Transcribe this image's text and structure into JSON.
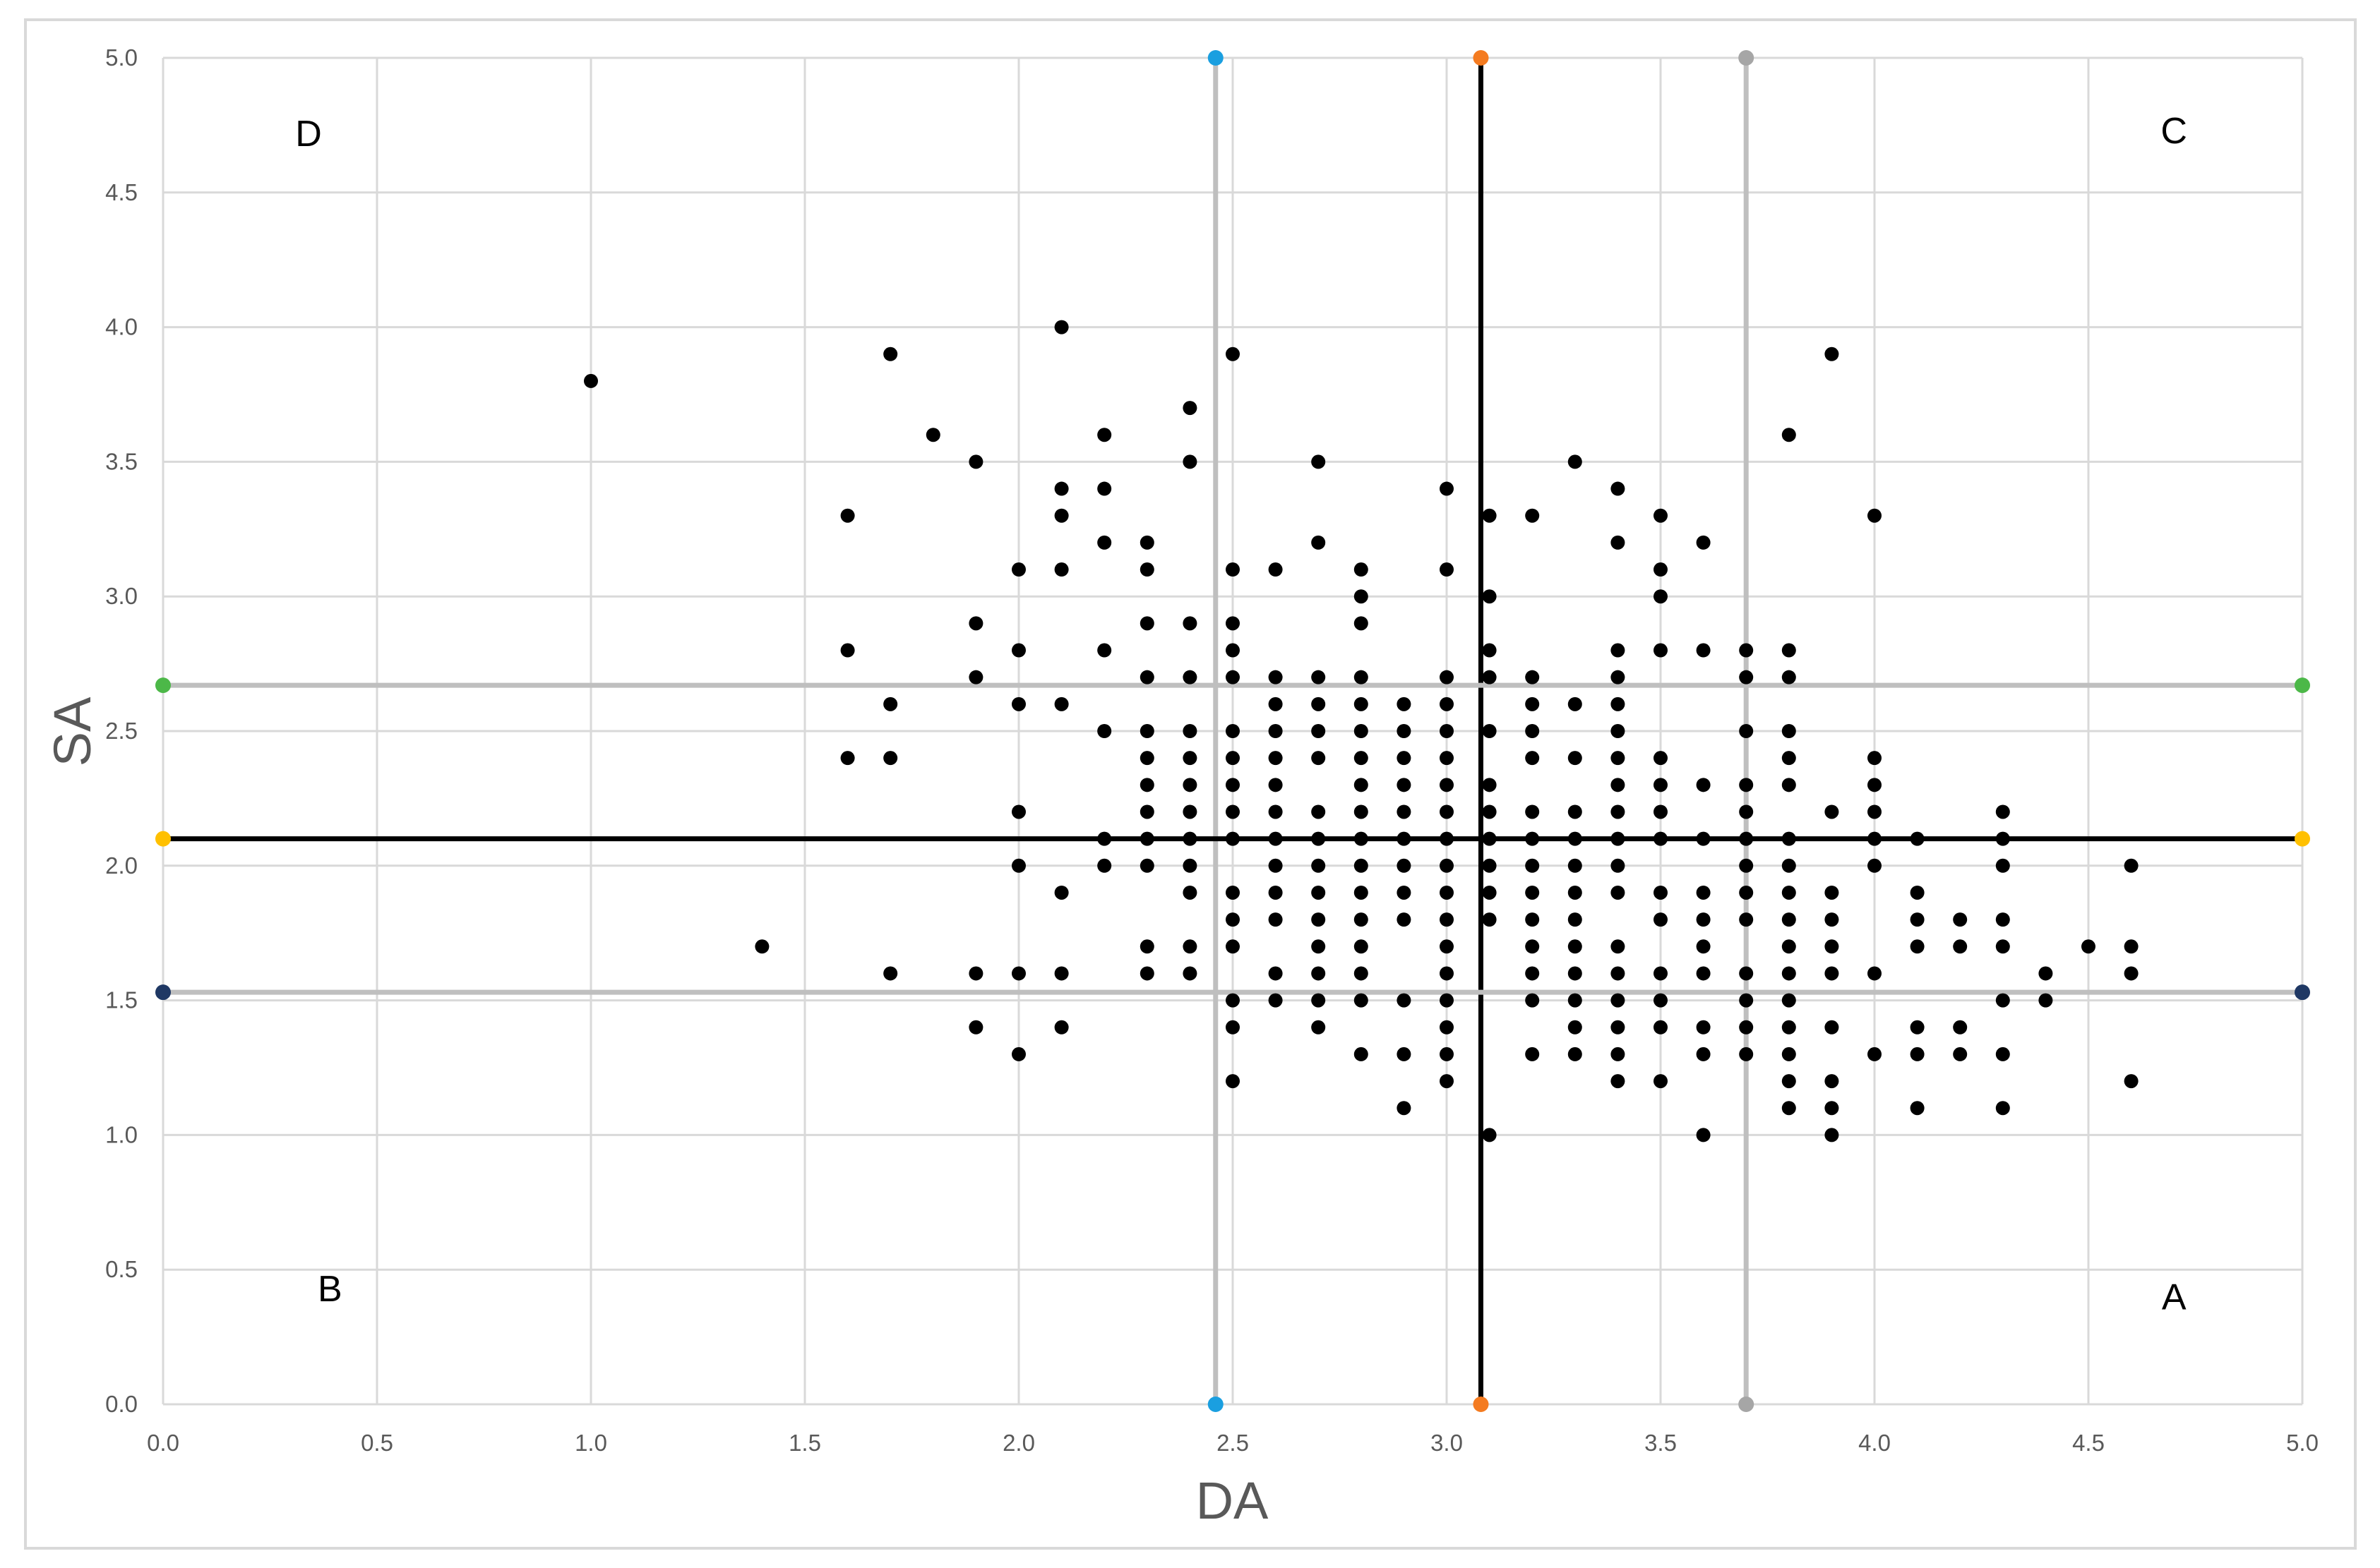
{
  "chart_data": {
    "type": "scatter",
    "title": "",
    "xlabel": "DA",
    "ylabel": "SA",
    "xlim": [
      0,
      5
    ],
    "ylim": [
      0,
      5
    ],
    "x_ticks": [
      "0.0",
      "0.5",
      "1.0",
      "1.5",
      "2.0",
      "2.5",
      "3.0",
      "3.5",
      "4.0",
      "4.5",
      "5.0"
    ],
    "y_ticks": [
      "0.0",
      "0.5",
      "1.0",
      "1.5",
      "2.0",
      "2.5",
      "3.0",
      "3.5",
      "4.0",
      "4.5",
      "5.0"
    ],
    "grid": true,
    "legend": "none",
    "quadrant_labels": [
      {
        "text": "D",
        "x": 0.34,
        "y": 4.72
      },
      {
        "text": "C",
        "x": 4.7,
        "y": 4.73
      },
      {
        "text": "B",
        "x": 0.39,
        "y": 0.43
      },
      {
        "text": "A",
        "x": 4.7,
        "y": 0.4
      }
    ],
    "reference_lines": [
      {
        "orientation": "vertical",
        "value": 2.46,
        "color": "#BFBFBF",
        "marker_color": "#1A9FE0"
      },
      {
        "orientation": "vertical",
        "value": 3.08,
        "color": "#000000",
        "marker_color": "#F47B20"
      },
      {
        "orientation": "vertical",
        "value": 3.7,
        "color": "#BFBFBF",
        "marker_color": "#A6A6A6"
      },
      {
        "orientation": "horizontal",
        "value": 2.67,
        "color": "#BFBFBF",
        "marker_color": "#4CB848"
      },
      {
        "orientation": "horizontal",
        "value": 2.1,
        "color": "#000000",
        "marker_color": "#FFC000"
      },
      {
        "orientation": "horizontal",
        "value": 1.53,
        "color": "#BFBFBF",
        "marker_color": "#1F3864"
      }
    ],
    "series": [
      {
        "color": "#000000",
        "points": [
          [
            1.0,
            3.8
          ],
          [
            1.4,
            1.7
          ],
          [
            1.6,
            3.3
          ],
          [
            1.6,
            2.8
          ],
          [
            1.6,
            2.4
          ],
          [
            1.7,
            3.9
          ],
          [
            1.7,
            2.6
          ],
          [
            1.7,
            2.4
          ],
          [
            1.7,
            1.6
          ],
          [
            1.8,
            3.6
          ],
          [
            1.9,
            3.5
          ],
          [
            1.9,
            2.9
          ],
          [
            1.9,
            2.7
          ],
          [
            1.9,
            1.6
          ],
          [
            1.9,
            1.4
          ],
          [
            2.0,
            3.1
          ],
          [
            2.0,
            2.8
          ],
          [
            2.0,
            2.6
          ],
          [
            2.0,
            2.2
          ],
          [
            2.0,
            2.0
          ],
          [
            2.0,
            1.6
          ],
          [
            2.0,
            1.3
          ],
          [
            2.1,
            4.0
          ],
          [
            2.1,
            3.4
          ],
          [
            2.1,
            3.3
          ],
          [
            2.1,
            3.1
          ],
          [
            2.1,
            2.6
          ],
          [
            2.1,
            1.9
          ],
          [
            2.1,
            1.6
          ],
          [
            2.1,
            1.4
          ],
          [
            2.2,
            3.6
          ],
          [
            2.2,
            3.4
          ],
          [
            2.2,
            3.2
          ],
          [
            2.2,
            2.8
          ],
          [
            2.2,
            2.5
          ],
          [
            2.2,
            2.1
          ],
          [
            2.2,
            2.0
          ],
          [
            2.3,
            3.2
          ],
          [
            2.3,
            3.1
          ],
          [
            2.3,
            2.9
          ],
          [
            2.3,
            2.7
          ],
          [
            2.3,
            2.5
          ],
          [
            2.3,
            2.4
          ],
          [
            2.3,
            2.3
          ],
          [
            2.3,
            2.2
          ],
          [
            2.3,
            2.1
          ],
          [
            2.3,
            2.0
          ],
          [
            2.3,
            1.7
          ],
          [
            2.3,
            1.6
          ],
          [
            2.4,
            3.7
          ],
          [
            2.4,
            3.5
          ],
          [
            2.4,
            2.9
          ],
          [
            2.4,
            2.7
          ],
          [
            2.4,
            2.5
          ],
          [
            2.4,
            2.4
          ],
          [
            2.4,
            2.3
          ],
          [
            2.4,
            2.2
          ],
          [
            2.4,
            2.1
          ],
          [
            2.4,
            2.0
          ],
          [
            2.4,
            1.9
          ],
          [
            2.4,
            1.7
          ],
          [
            2.4,
            1.6
          ],
          [
            2.5,
            3.9
          ],
          [
            2.5,
            3.1
          ],
          [
            2.5,
            2.9
          ],
          [
            2.5,
            2.8
          ],
          [
            2.5,
            2.7
          ],
          [
            2.5,
            2.5
          ],
          [
            2.5,
            2.4
          ],
          [
            2.5,
            2.3
          ],
          [
            2.5,
            2.2
          ],
          [
            2.5,
            2.1
          ],
          [
            2.5,
            1.9
          ],
          [
            2.5,
            1.8
          ],
          [
            2.5,
            1.7
          ],
          [
            2.5,
            1.5
          ],
          [
            2.5,
            1.4
          ],
          [
            2.5,
            1.2
          ],
          [
            2.6,
            3.1
          ],
          [
            2.6,
            2.7
          ],
          [
            2.6,
            2.6
          ],
          [
            2.6,
            2.5
          ],
          [
            2.6,
            2.4
          ],
          [
            2.6,
            2.3
          ],
          [
            2.6,
            2.2
          ],
          [
            2.6,
            2.1
          ],
          [
            2.6,
            2.0
          ],
          [
            2.6,
            1.9
          ],
          [
            2.6,
            1.8
          ],
          [
            2.6,
            1.6
          ],
          [
            2.6,
            1.5
          ],
          [
            2.7,
            3.5
          ],
          [
            2.7,
            3.2
          ],
          [
            2.7,
            2.7
          ],
          [
            2.7,
            2.6
          ],
          [
            2.7,
            2.5
          ],
          [
            2.7,
            2.4
          ],
          [
            2.7,
            2.2
          ],
          [
            2.7,
            2.1
          ],
          [
            2.7,
            2.0
          ],
          [
            2.7,
            1.9
          ],
          [
            2.7,
            1.8
          ],
          [
            2.7,
            1.7
          ],
          [
            2.7,
            1.6
          ],
          [
            2.7,
            1.5
          ],
          [
            2.7,
            1.4
          ],
          [
            2.8,
            3.1
          ],
          [
            2.8,
            3.0
          ],
          [
            2.8,
            2.9
          ],
          [
            2.8,
            2.7
          ],
          [
            2.8,
            2.6
          ],
          [
            2.8,
            2.5
          ],
          [
            2.8,
            2.4
          ],
          [
            2.8,
            2.3
          ],
          [
            2.8,
            2.2
          ],
          [
            2.8,
            2.1
          ],
          [
            2.8,
            2.0
          ],
          [
            2.8,
            1.9
          ],
          [
            2.8,
            1.8
          ],
          [
            2.8,
            1.7
          ],
          [
            2.8,
            1.6
          ],
          [
            2.8,
            1.5
          ],
          [
            2.8,
            1.3
          ],
          [
            2.9,
            2.6
          ],
          [
            2.9,
            2.5
          ],
          [
            2.9,
            2.4
          ],
          [
            2.9,
            2.3
          ],
          [
            2.9,
            2.2
          ],
          [
            2.9,
            2.1
          ],
          [
            2.9,
            2.0
          ],
          [
            2.9,
            1.9
          ],
          [
            2.9,
            1.8
          ],
          [
            2.9,
            1.5
          ],
          [
            2.9,
            1.3
          ],
          [
            2.9,
            1.1
          ],
          [
            3.0,
            3.4
          ],
          [
            3.0,
            3.1
          ],
          [
            3.0,
            2.7
          ],
          [
            3.0,
            2.6
          ],
          [
            3.0,
            2.5
          ],
          [
            3.0,
            2.4
          ],
          [
            3.0,
            2.3
          ],
          [
            3.0,
            2.2
          ],
          [
            3.0,
            2.1
          ],
          [
            3.0,
            2.0
          ],
          [
            3.0,
            1.9
          ],
          [
            3.0,
            1.8
          ],
          [
            3.0,
            1.7
          ],
          [
            3.0,
            1.6
          ],
          [
            3.0,
            1.5
          ],
          [
            3.0,
            1.4
          ],
          [
            3.0,
            1.3
          ],
          [
            3.0,
            1.2
          ],
          [
            3.1,
            3.3
          ],
          [
            3.1,
            3.0
          ],
          [
            3.1,
            2.8
          ],
          [
            3.1,
            2.7
          ],
          [
            3.1,
            2.5
          ],
          [
            3.1,
            2.3
          ],
          [
            3.1,
            2.2
          ],
          [
            3.1,
            2.1
          ],
          [
            3.1,
            2.0
          ],
          [
            3.1,
            1.9
          ],
          [
            3.1,
            1.8
          ],
          [
            3.1,
            1.0
          ],
          [
            3.2,
            3.3
          ],
          [
            3.2,
            2.7
          ],
          [
            3.2,
            2.6
          ],
          [
            3.2,
            2.5
          ],
          [
            3.2,
            2.4
          ],
          [
            3.2,
            2.2
          ],
          [
            3.2,
            2.1
          ],
          [
            3.2,
            2.0
          ],
          [
            3.2,
            1.9
          ],
          [
            3.2,
            1.8
          ],
          [
            3.2,
            1.7
          ],
          [
            3.2,
            1.6
          ],
          [
            3.2,
            1.5
          ],
          [
            3.2,
            1.3
          ],
          [
            3.3,
            3.5
          ],
          [
            3.3,
            2.6
          ],
          [
            3.3,
            2.4
          ],
          [
            3.3,
            2.2
          ],
          [
            3.3,
            2.1
          ],
          [
            3.3,
            2.0
          ],
          [
            3.3,
            1.9
          ],
          [
            3.3,
            1.8
          ],
          [
            3.3,
            1.7
          ],
          [
            3.3,
            1.6
          ],
          [
            3.3,
            1.5
          ],
          [
            3.3,
            1.4
          ],
          [
            3.3,
            1.3
          ],
          [
            3.4,
            3.4
          ],
          [
            3.4,
            3.2
          ],
          [
            3.4,
            2.8
          ],
          [
            3.4,
            2.7
          ],
          [
            3.4,
            2.6
          ],
          [
            3.4,
            2.5
          ],
          [
            3.4,
            2.4
          ],
          [
            3.4,
            2.3
          ],
          [
            3.4,
            2.2
          ],
          [
            3.4,
            2.1
          ],
          [
            3.4,
            2.0
          ],
          [
            3.4,
            1.9
          ],
          [
            3.4,
            1.7
          ],
          [
            3.4,
            1.6
          ],
          [
            3.4,
            1.5
          ],
          [
            3.4,
            1.4
          ],
          [
            3.4,
            1.3
          ],
          [
            3.4,
            1.2
          ],
          [
            3.5,
            3.3
          ],
          [
            3.5,
            3.1
          ],
          [
            3.5,
            3.0
          ],
          [
            3.5,
            2.8
          ],
          [
            3.5,
            2.4
          ],
          [
            3.5,
            2.3
          ],
          [
            3.5,
            2.2
          ],
          [
            3.5,
            2.1
          ],
          [
            3.5,
            1.9
          ],
          [
            3.5,
            1.8
          ],
          [
            3.5,
            1.6
          ],
          [
            3.5,
            1.5
          ],
          [
            3.5,
            1.4
          ],
          [
            3.5,
            1.2
          ],
          [
            3.6,
            3.2
          ],
          [
            3.6,
            2.8
          ],
          [
            3.6,
            2.3
          ],
          [
            3.6,
            2.1
          ],
          [
            3.6,
            1.9
          ],
          [
            3.6,
            1.8
          ],
          [
            3.6,
            1.7
          ],
          [
            3.6,
            1.6
          ],
          [
            3.6,
            1.4
          ],
          [
            3.6,
            1.3
          ],
          [
            3.6,
            1.0
          ],
          [
            3.7,
            2.8
          ],
          [
            3.7,
            2.7
          ],
          [
            3.7,
            2.5
          ],
          [
            3.7,
            2.3
          ],
          [
            3.7,
            2.2
          ],
          [
            3.7,
            2.1
          ],
          [
            3.7,
            2.0
          ],
          [
            3.7,
            1.9
          ],
          [
            3.7,
            1.8
          ],
          [
            3.7,
            1.6
          ],
          [
            3.7,
            1.5
          ],
          [
            3.7,
            1.4
          ],
          [
            3.7,
            1.3
          ],
          [
            3.8,
            3.6
          ],
          [
            3.8,
            2.8
          ],
          [
            3.8,
            2.7
          ],
          [
            3.8,
            2.5
          ],
          [
            3.8,
            2.4
          ],
          [
            3.8,
            2.3
          ],
          [
            3.8,
            2.1
          ],
          [
            3.8,
            2.0
          ],
          [
            3.8,
            1.9
          ],
          [
            3.8,
            1.8
          ],
          [
            3.8,
            1.7
          ],
          [
            3.8,
            1.6
          ],
          [
            3.8,
            1.5
          ],
          [
            3.8,
            1.4
          ],
          [
            3.8,
            1.3
          ],
          [
            3.8,
            1.2
          ],
          [
            3.8,
            1.1
          ],
          [
            3.9,
            3.9
          ],
          [
            3.9,
            2.2
          ],
          [
            3.9,
            1.9
          ],
          [
            3.9,
            1.8
          ],
          [
            3.9,
            1.7
          ],
          [
            3.9,
            1.6
          ],
          [
            3.9,
            1.4
          ],
          [
            3.9,
            1.2
          ],
          [
            3.9,
            1.1
          ],
          [
            3.9,
            1.0
          ],
          [
            4.0,
            3.3
          ],
          [
            4.0,
            2.4
          ],
          [
            4.0,
            2.3
          ],
          [
            4.0,
            2.2
          ],
          [
            4.0,
            2.1
          ],
          [
            4.0,
            2.0
          ],
          [
            4.0,
            1.6
          ],
          [
            4.0,
            1.3
          ],
          [
            4.1,
            2.1
          ],
          [
            4.1,
            1.9
          ],
          [
            4.1,
            1.8
          ],
          [
            4.1,
            1.7
          ],
          [
            4.1,
            1.4
          ],
          [
            4.1,
            1.3
          ],
          [
            4.1,
            1.1
          ],
          [
            4.2,
            1.8
          ],
          [
            4.2,
            1.7
          ],
          [
            4.2,
            1.4
          ],
          [
            4.2,
            1.3
          ],
          [
            4.3,
            2.2
          ],
          [
            4.3,
            2.1
          ],
          [
            4.3,
            2.0
          ],
          [
            4.3,
            1.8
          ],
          [
            4.3,
            1.7
          ],
          [
            4.3,
            1.5
          ],
          [
            4.3,
            1.3
          ],
          [
            4.3,
            1.1
          ],
          [
            4.4,
            1.6
          ],
          [
            4.4,
            1.5
          ],
          [
            4.5,
            1.7
          ],
          [
            4.6,
            2.0
          ],
          [
            4.6,
            1.7
          ],
          [
            4.6,
            1.6
          ],
          [
            4.6,
            1.2
          ]
        ]
      }
    ]
  }
}
